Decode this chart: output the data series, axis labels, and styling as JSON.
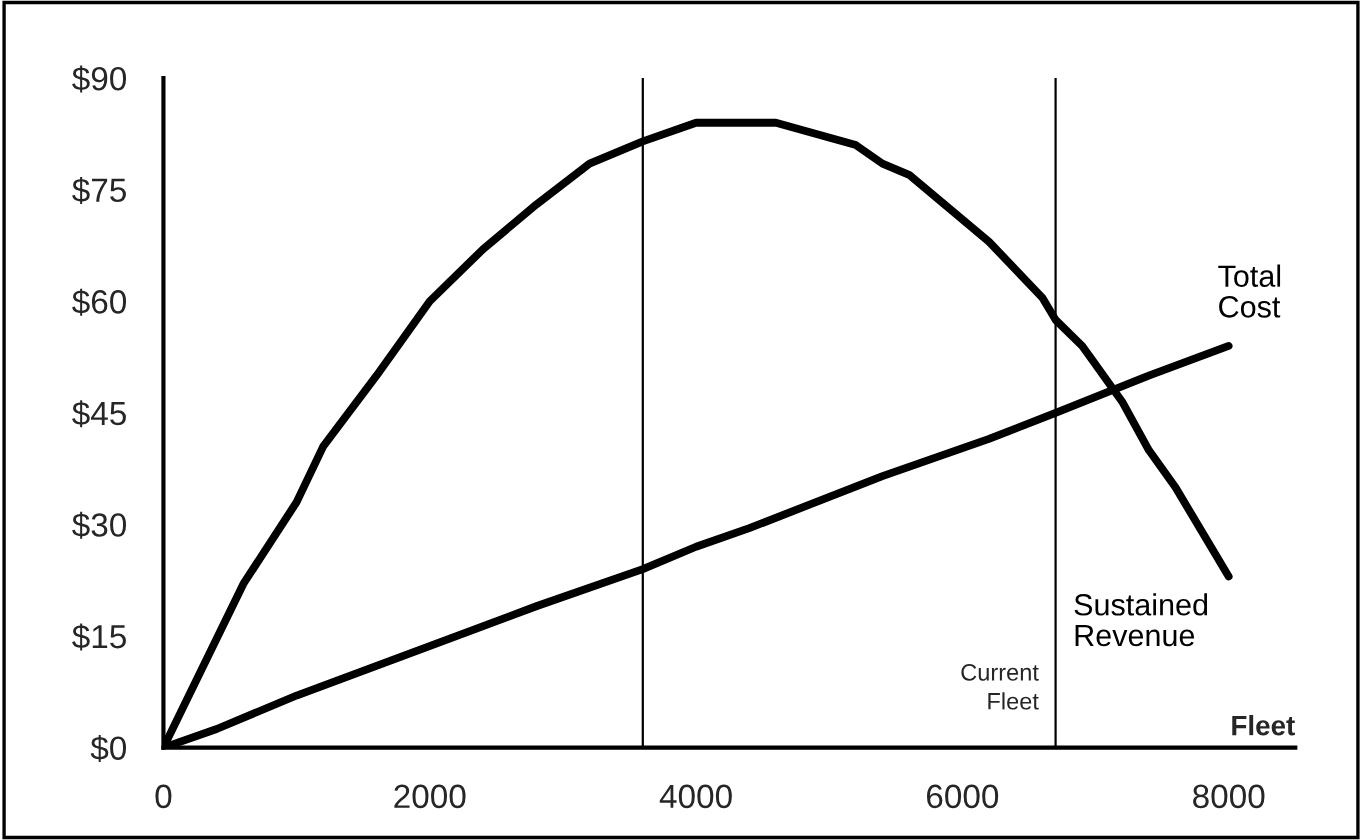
{
  "chart_data": {
    "type": "line",
    "xlabel": "Fleet",
    "xlim": [
      0,
      8500
    ],
    "xticks": [
      0,
      2000,
      4000,
      6000,
      8000
    ],
    "ylim": [
      0,
      90
    ],
    "yticks": [
      {
        "value": 0,
        "label": "$0"
      },
      {
        "value": 15,
        "label": "$15"
      },
      {
        "value": 30,
        "label": "$30"
      },
      {
        "value": 45,
        "label": "$45"
      },
      {
        "value": 60,
        "label": "$60"
      },
      {
        "value": 75,
        "label": "$75"
      },
      {
        "value": 90,
        "label": "$90"
      }
    ],
    "grid": false,
    "legend": false,
    "marker": "none",
    "line_style": "solid",
    "series": [
      {
        "name": "Sustained Revenue",
        "color": "#000000",
        "x": [
          0,
          600,
          1000,
          1200,
          1600,
          2000,
          2400,
          2800,
          3200,
          3600,
          4000,
          4600,
          5200,
          5400,
          5600,
          6200,
          6600,
          6700,
          6900,
          7000,
          7200,
          7400,
          7600,
          8000
        ],
        "values": [
          0,
          22,
          33,
          40.5,
          50,
          60,
          67,
          73,
          78.5,
          81.5,
          84,
          84,
          81,
          78.5,
          77,
          68,
          60.5,
          57.5,
          54,
          51.5,
          46.5,
          40,
          35,
          23
        ]
      },
      {
        "name": "Total Cost",
        "color": "#000000",
        "x": [
          0,
          400,
          1000,
          1600,
          2200,
          2800,
          3600,
          4000,
          4400,
          5400,
          6200,
          6700,
          7400,
          8000
        ],
        "values": [
          0,
          2.5,
          7,
          11,
          15,
          19,
          24,
          27,
          29.5,
          36.5,
          41.5,
          45,
          50,
          54
        ]
      }
    ],
    "ref_lines": [
      {
        "axis": "x",
        "value": 3600,
        "color": "#000000"
      },
      {
        "axis": "x",
        "value": 6700,
        "label": "Current Fleet",
        "color": "#000000"
      }
    ]
  }
}
